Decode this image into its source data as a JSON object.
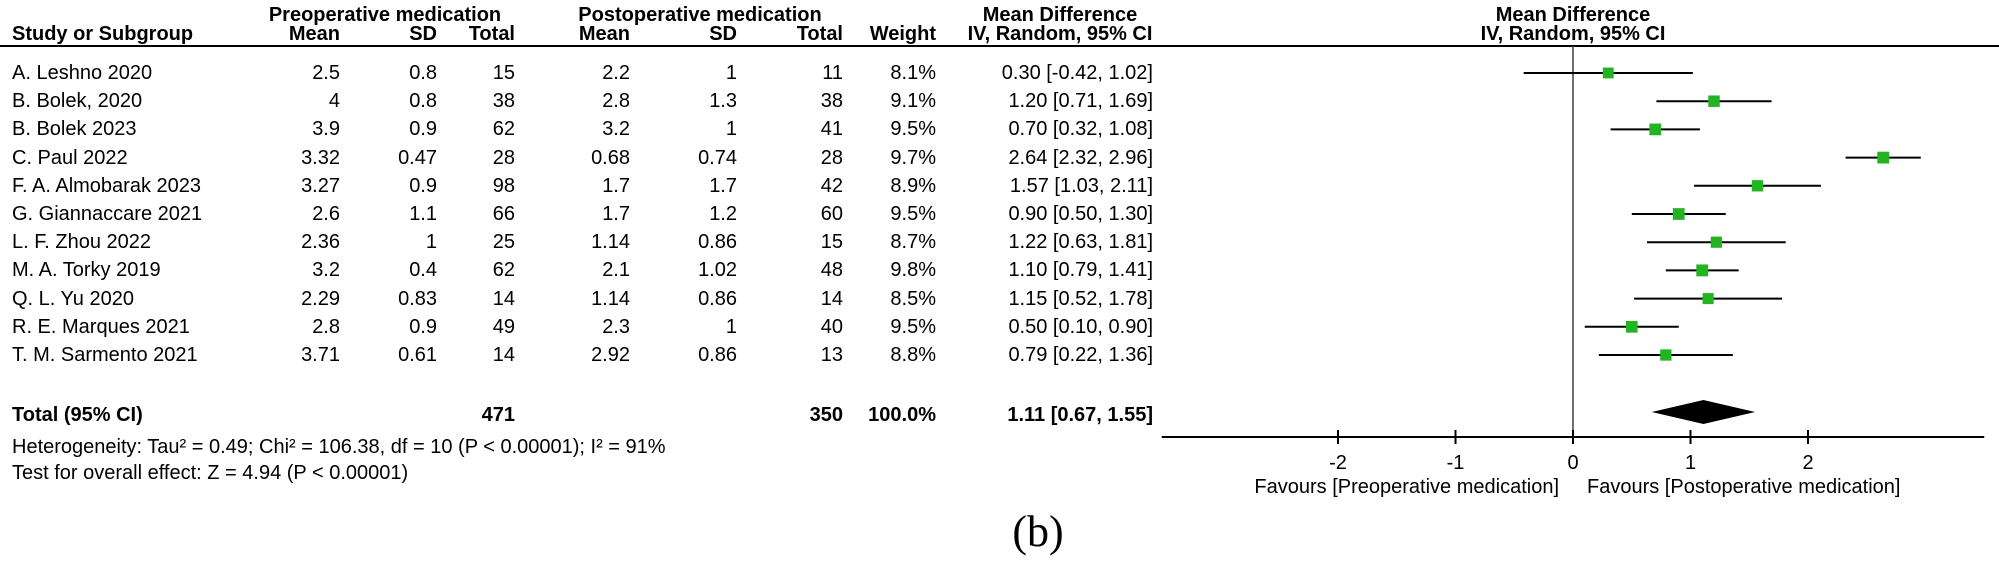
{
  "header": {
    "group1": "Preoperative medication",
    "group2": "Postoperative medication",
    "md": "Mean Difference",
    "ci_method": "IV, Random, 95% CI",
    "study_col": "Study or Subgroup",
    "cols": [
      "Mean",
      "SD",
      "Total",
      "Mean",
      "SD",
      "Total",
      "Weight"
    ]
  },
  "caption": "(b)",
  "colors": {
    "marker": "#22b422",
    "diamond": "#000000",
    "axis": "#000000",
    "zero_line": "#404040"
  },
  "chart_data": {
    "type": "forest",
    "effect_label": "Mean Difference",
    "method": "IV, Random, 95% CI",
    "studies": [
      {
        "study": "A. Leshno 2020",
        "pre_mean": 2.5,
        "pre_sd": 0.8,
        "pre_total": 15,
        "post_mean": 2.2,
        "post_sd": 1,
        "post_total": 11,
        "weight": "8.1%",
        "weight_pct": 8.1,
        "md": 0.3,
        "ci_lo": -0.42,
        "ci_hi": 1.02,
        "ci_label": "0.30 [-0.42, 1.02]"
      },
      {
        "study": "B. Bolek, 2020",
        "pre_mean": 4,
        "pre_sd": 0.8,
        "pre_total": 38,
        "post_mean": 2.8,
        "post_sd": 1.3,
        "post_total": 38,
        "weight": "9.1%",
        "weight_pct": 9.1,
        "md": 1.2,
        "ci_lo": 0.71,
        "ci_hi": 1.69,
        "ci_label": "1.20 [0.71, 1.69]"
      },
      {
        "study": "B. Bolek 2023",
        "pre_mean": 3.9,
        "pre_sd": 0.9,
        "pre_total": 62,
        "post_mean": 3.2,
        "post_sd": 1,
        "post_total": 41,
        "weight": "9.5%",
        "weight_pct": 9.5,
        "md": 0.7,
        "ci_lo": 0.32,
        "ci_hi": 1.08,
        "ci_label": "0.70 [0.32, 1.08]"
      },
      {
        "study": "C. Paul 2022",
        "pre_mean": 3.32,
        "pre_sd": 0.47,
        "pre_total": 28,
        "post_mean": 0.68,
        "post_sd": 0.74,
        "post_total": 28,
        "weight": "9.7%",
        "weight_pct": 9.7,
        "md": 2.64,
        "ci_lo": 2.32,
        "ci_hi": 2.96,
        "ci_label": "2.64 [2.32, 2.96]"
      },
      {
        "study": "F. A. Almobarak 2023",
        "pre_mean": 3.27,
        "pre_sd": 0.9,
        "pre_total": 98,
        "post_mean": 1.7,
        "post_sd": 1.7,
        "post_total": 42,
        "weight": "8.9%",
        "weight_pct": 8.9,
        "md": 1.57,
        "ci_lo": 1.03,
        "ci_hi": 2.11,
        "ci_label": "1.57 [1.03, 2.11]"
      },
      {
        "study": "G. Giannaccare 2021",
        "pre_mean": 2.6,
        "pre_sd": 1.1,
        "pre_total": 66,
        "post_mean": 1.7,
        "post_sd": 1.2,
        "post_total": 60,
        "weight": "9.5%",
        "weight_pct": 9.5,
        "md": 0.9,
        "ci_lo": 0.5,
        "ci_hi": 1.3,
        "ci_label": "0.90 [0.50, 1.30]"
      },
      {
        "study": "L. F. Zhou 2022",
        "pre_mean": 2.36,
        "pre_sd": 1,
        "pre_total": 25,
        "post_mean": 1.14,
        "post_sd": 0.86,
        "post_total": 15,
        "weight": "8.7%",
        "weight_pct": 8.7,
        "md": 1.22,
        "ci_lo": 0.63,
        "ci_hi": 1.81,
        "ci_label": "1.22 [0.63, 1.81]"
      },
      {
        "study": "M. A. Torky 2019",
        "pre_mean": 3.2,
        "pre_sd": 0.4,
        "pre_total": 62,
        "post_mean": 2.1,
        "post_sd": 1.02,
        "post_total": 48,
        "weight": "9.8%",
        "weight_pct": 9.8,
        "md": 1.1,
        "ci_lo": 0.79,
        "ci_hi": 1.41,
        "ci_label": "1.10 [0.79, 1.41]"
      },
      {
        "study": "Q. L. Yu 2020",
        "pre_mean": 2.29,
        "pre_sd": 0.83,
        "pre_total": 14,
        "post_mean": 1.14,
        "post_sd": 0.86,
        "post_total": 14,
        "weight": "8.5%",
        "weight_pct": 8.5,
        "md": 1.15,
        "ci_lo": 0.52,
        "ci_hi": 1.78,
        "ci_label": "1.15 [0.52, 1.78]"
      },
      {
        "study": "R. E. Marques 2021",
        "pre_mean": 2.8,
        "pre_sd": 0.9,
        "pre_total": 49,
        "post_mean": 2.3,
        "post_sd": 1,
        "post_total": 40,
        "weight": "9.5%",
        "weight_pct": 9.5,
        "md": 0.5,
        "ci_lo": 0.1,
        "ci_hi": 0.9,
        "ci_label": "0.50 [0.10, 0.90]"
      },
      {
        "study": "T. M. Sarmento 2021",
        "pre_mean": 3.71,
        "pre_sd": 0.61,
        "pre_total": 14,
        "post_mean": 2.92,
        "post_sd": 0.86,
        "post_total": 13,
        "weight": "8.8%",
        "weight_pct": 8.8,
        "md": 0.79,
        "ci_lo": 0.22,
        "ci_hi": 1.36,
        "ci_label": "0.79 [0.22, 1.36]"
      }
    ],
    "total": {
      "label": "Total (95% CI)",
      "pre_total": 471,
      "post_total": 350,
      "weight": "100.0%",
      "md": 1.11,
      "ci_lo": 0.67,
      "ci_hi": 1.55,
      "ci_label": "1.11 [0.67, 1.55]"
    },
    "heterogeneity": "Heterogeneity: Tau² = 0.49; Chi² = 106.38, df = 10 (P < 0.00001); I² = 91%",
    "overall_effect": "Test for overall effect: Z = 4.94 (P < 0.00001)",
    "axis": {
      "ticks": [
        -2,
        -1,
        0,
        1,
        2
      ],
      "xmin": -3.5,
      "xmax": 3.5,
      "favours_left": "Favours [Preoperative medication]",
      "favours_right": "Favours [Postoperative medication]"
    }
  }
}
